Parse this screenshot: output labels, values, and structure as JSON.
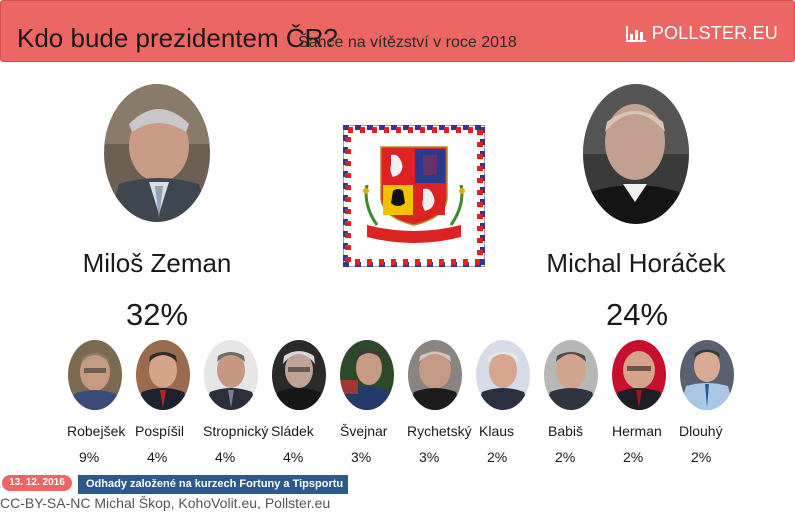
{
  "header": {
    "title": "Kdo bude prezidentem ČR?",
    "subtitle": "Šance na vítězství v roce 2018",
    "brand": "POLLSTER.EU",
    "brand_icon": "bar-chart-icon"
  },
  "main_candidates": [
    {
      "name": "Miloš Zeman",
      "percent": "32%"
    },
    {
      "name": "Michal Horáček",
      "percent": "24%"
    }
  ],
  "emblem": "presidential-standard-icon",
  "other_candidates": [
    {
      "name": "Robejšek",
      "percent": "9%"
    },
    {
      "name": "Pospíšil",
      "percent": "4%"
    },
    {
      "name": "Stropnický",
      "percent": "4%"
    },
    {
      "name": "Sládek",
      "percent": "4%"
    },
    {
      "name": "Švejnar",
      "percent": "3%"
    },
    {
      "name": "Rychetský",
      "percent": "3%"
    },
    {
      "name": "Klaus",
      "percent": "2%"
    },
    {
      "name": "Babiš",
      "percent": "2%"
    },
    {
      "name": "Herman",
      "percent": "2%"
    },
    {
      "name": "Dlouhý",
      "percent": "2%"
    }
  ],
  "footer": {
    "date": "13. 12. 2016",
    "note": "Odhady založené na kurzech Fortuny a Tipsportu",
    "credits": "CC-BY-SA-NC Michal Škop, KohoVolit.eu, Pollster.eu"
  },
  "colors": {
    "header_bg": "#ec6664",
    "note_bg": "#2d5a8a",
    "date_bg": "#ec6664"
  }
}
